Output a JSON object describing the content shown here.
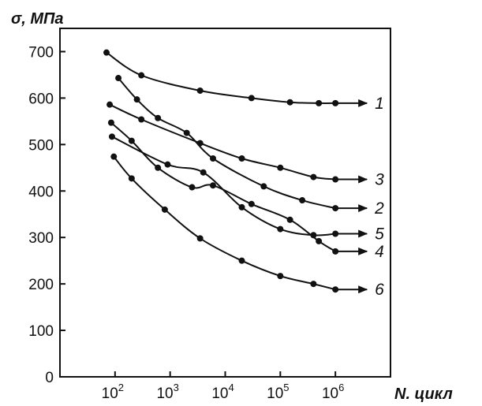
{
  "chart_data": {
    "type": "line",
    "title": "",
    "xlabel": "N. цикл",
    "ylabel": "σ, МПа",
    "x_scale": "log",
    "xlim": [
      10,
      10000000
    ],
    "ylim": [
      0,
      750
    ],
    "x_ticks": [
      {
        "value": 100,
        "base": "10",
        "exp": "2"
      },
      {
        "value": 1000,
        "base": "10",
        "exp": "3"
      },
      {
        "value": 10000,
        "base": "10",
        "exp": "4"
      },
      {
        "value": 100000,
        "base": "10",
        "exp": "5"
      },
      {
        "value": 1000000,
        "base": "10",
        "exp": "6"
      }
    ],
    "y_ticks": [
      "0",
      "100",
      "200",
      "300",
      "400",
      "500",
      "600",
      "700"
    ],
    "grid": false,
    "line_color": "#111111",
    "series": [
      {
        "label": "1",
        "points": [
          [
            70,
            698
          ],
          [
            300,
            649
          ],
          [
            3500,
            616
          ],
          [
            30000,
            600
          ],
          [
            150000,
            591
          ],
          [
            500000,
            589
          ],
          [
            1000000,
            589
          ]
        ]
      },
      {
        "label": "2",
        "points": [
          [
            115,
            643
          ],
          [
            250,
            597
          ],
          [
            600,
            557
          ],
          [
            2000,
            525
          ],
          [
            6000,
            470
          ],
          [
            50000,
            410
          ],
          [
            250000,
            380
          ],
          [
            1000000,
            363
          ]
        ]
      },
      {
        "label": "3",
        "points": [
          [
            80,
            586
          ],
          [
            300,
            554
          ],
          [
            3500,
            503
          ],
          [
            20000,
            470
          ],
          [
            100000,
            450
          ],
          [
            400000,
            430
          ],
          [
            1000000,
            425
          ]
        ]
      },
      {
        "label": "4",
        "points": [
          [
            85,
            547
          ],
          [
            200,
            508
          ],
          [
            600,
            450
          ],
          [
            2500,
            408
          ],
          [
            6000,
            412
          ],
          [
            30000,
            372
          ],
          [
            150000,
            338
          ],
          [
            500000,
            292
          ],
          [
            1000000,
            270
          ]
        ]
      },
      {
        "label": "5",
        "points": [
          [
            88,
            517
          ],
          [
            900,
            457
          ],
          [
            4000,
            440
          ],
          [
            20000,
            365
          ],
          [
            100000,
            318
          ],
          [
            400000,
            305
          ],
          [
            1000000,
            308
          ]
        ]
      },
      {
        "label": "6",
        "points": [
          [
            95,
            474
          ],
          [
            200,
            427
          ],
          [
            800,
            360
          ],
          [
            3500,
            298
          ],
          [
            20000,
            250
          ],
          [
            100000,
            217
          ],
          [
            400000,
            200
          ],
          [
            1000000,
            188
          ]
        ]
      }
    ]
  }
}
